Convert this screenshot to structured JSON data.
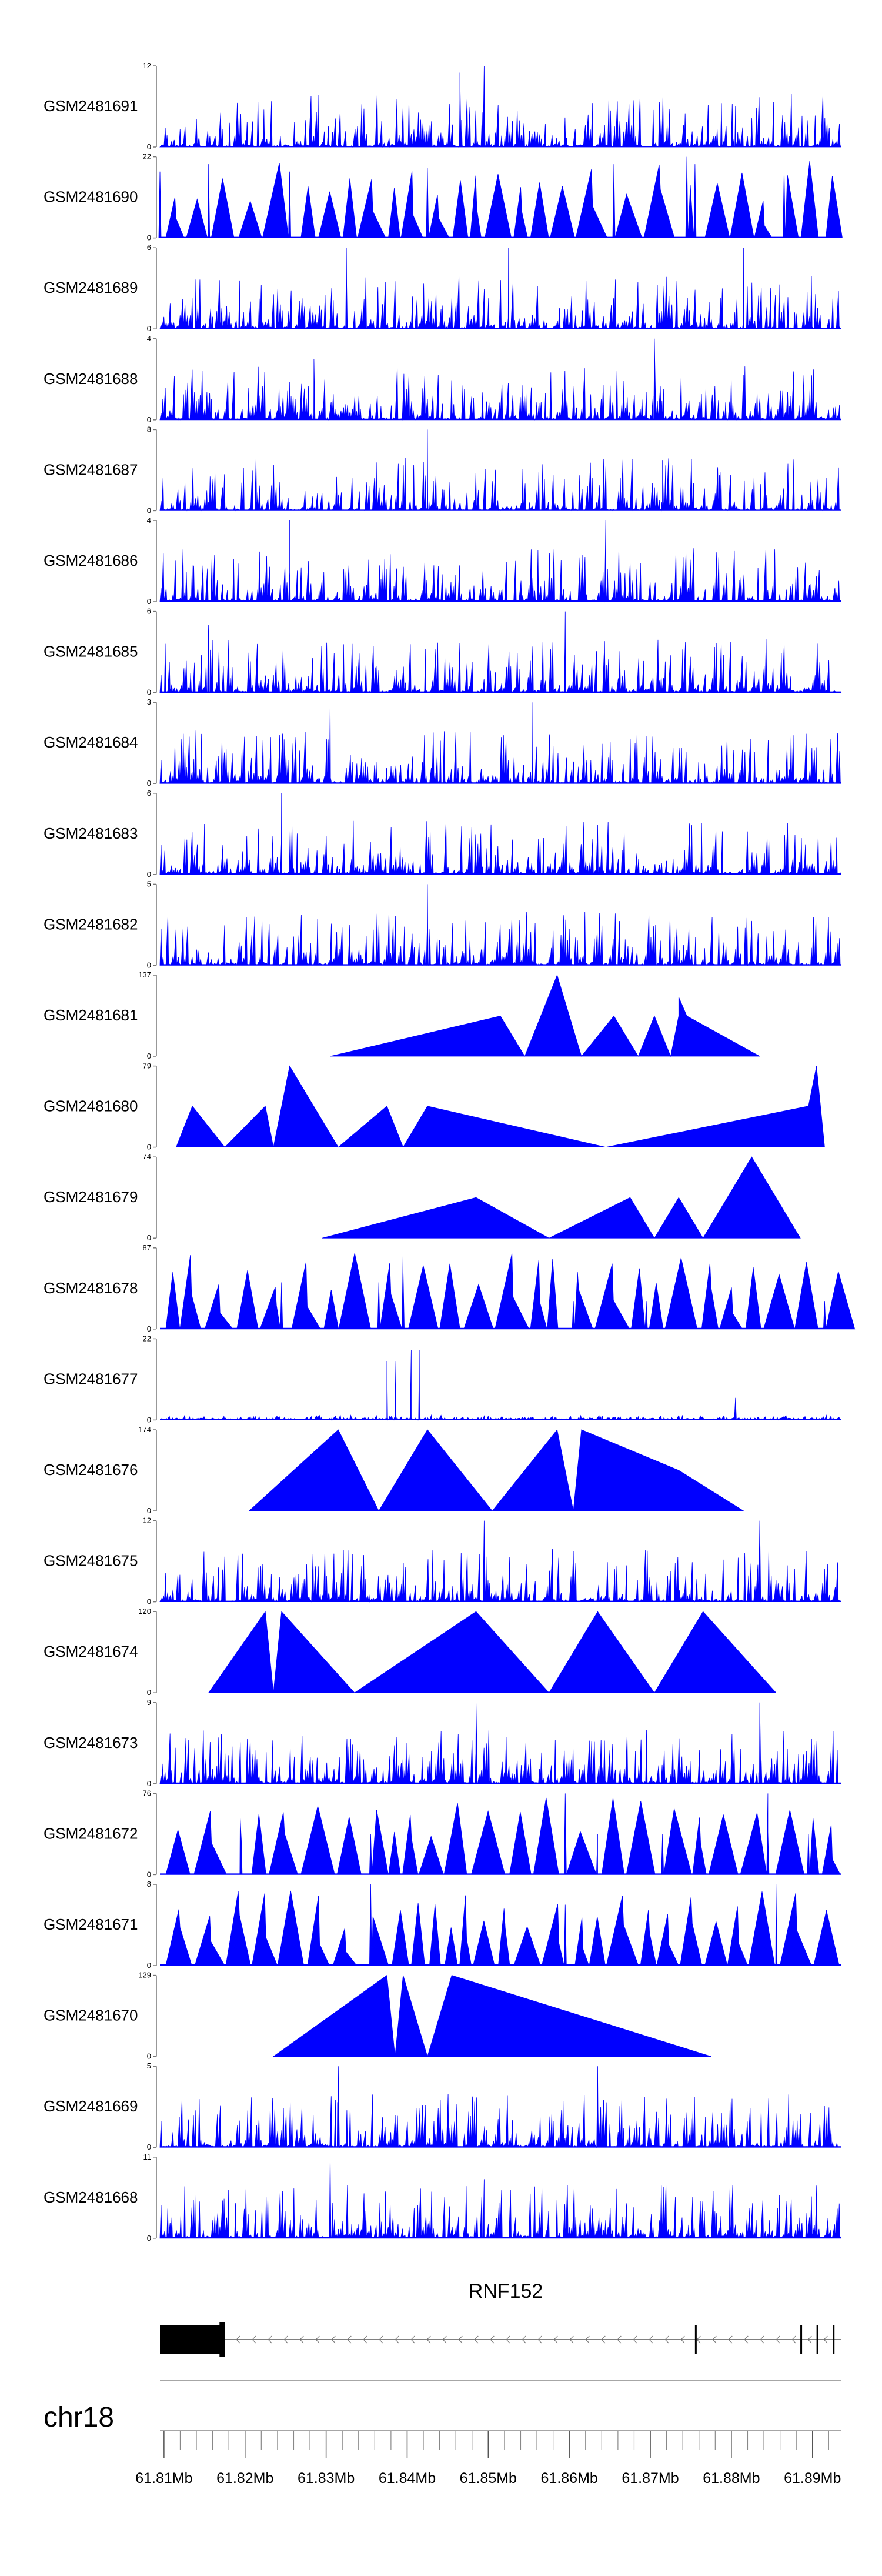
{
  "chart_data": {
    "type": "area",
    "title": "",
    "x_unit": "Mb",
    "x_range": [
      61.8095,
      61.8935
    ],
    "track_color": "#0000ff",
    "tracks": [
      {
        "name": "GSM2481691",
        "ymax": 12,
        "ymin": 0,
        "pattern": "spiky",
        "points": [
          [
            61.8465,
            7
          ],
          [
            61.8495,
            12
          ],
          [
            61.8465,
            11
          ],
          [
            61.8805,
            6
          ]
        ]
      },
      {
        "name": "GSM2481690",
        "ymax": 22,
        "ymin": 0,
        "pattern": "triangles",
        "points": [
          [
            61.8095,
            18
          ],
          [
            61.8155,
            20
          ],
          [
            61.8255,
            18
          ],
          [
            61.8425,
            19
          ],
          [
            61.8655,
            20
          ],
          [
            61.8745,
            22
          ],
          [
            61.8755,
            20
          ],
          [
            61.8865,
            18
          ],
          [
            61.8915,
            0
          ]
        ]
      },
      {
        "name": "GSM2481689",
        "ymax": 6,
        "ymin": 0,
        "pattern": "spiky",
        "points": [
          [
            61.8325,
            6
          ],
          [
            61.8525,
            6
          ],
          [
            61.8815,
            6
          ]
        ]
      },
      {
        "name": "GSM2481688",
        "ymax": 4,
        "ymin": 0,
        "pattern": "spiky",
        "points": [
          [
            61.8705,
            4
          ],
          [
            61.8285,
            3
          ]
        ]
      },
      {
        "name": "GSM2481687",
        "ymax": 8,
        "ymin": 0,
        "pattern": "spiky",
        "points": [
          [
            61.8425,
            8
          ],
          [
            61.8715,
            5
          ]
        ]
      },
      {
        "name": "GSM2481686",
        "ymax": 4,
        "ymin": 0,
        "pattern": "spiky",
        "points": [
          [
            61.8255,
            4
          ],
          [
            61.8645,
            4
          ]
        ]
      },
      {
        "name": "GSM2481685",
        "ymax": 6,
        "ymin": 0,
        "pattern": "spiky",
        "points": [
          [
            61.8595,
            6
          ],
          [
            61.8155,
            5
          ]
        ]
      },
      {
        "name": "GSM2481684",
        "ymax": 3,
        "ymin": 0,
        "pattern": "spiky",
        "points": [
          [
            61.8305,
            3
          ],
          [
            61.8555,
            3
          ]
        ]
      },
      {
        "name": "GSM2481683",
        "ymax": 6,
        "ymin": 0,
        "pattern": "spiky",
        "points": [
          [
            61.8245,
            6
          ]
        ]
      },
      {
        "name": "GSM2481682",
        "ymax": 5,
        "ymin": 0,
        "pattern": "spiky",
        "points": [
          [
            61.8425,
            5
          ]
        ]
      },
      {
        "name": "GSM2481681",
        "ymax": 137,
        "ymin": 0,
        "pattern": "polygon",
        "points": [
          [
            61.8305,
            0
          ],
          [
            61.8515,
            68
          ],
          [
            61.8545,
            0
          ],
          [
            61.8585,
            137
          ],
          [
            61.8615,
            0
          ],
          [
            61.8655,
            68
          ],
          [
            61.8685,
            0
          ],
          [
            61.8705,
            68
          ],
          [
            61.8725,
            0
          ],
          [
            61.8735,
            68
          ],
          [
            61.8735,
            100
          ],
          [
            61.8745,
            68
          ],
          [
            61.8835,
            0
          ]
        ]
      },
      {
        "name": "GSM2481680",
        "ymax": 79,
        "ymin": 0,
        "pattern": "polygon",
        "points": [
          [
            61.8115,
            0
          ],
          [
            61.8135,
            40
          ],
          [
            61.8175,
            0
          ],
          [
            61.8225,
            40
          ],
          [
            61.8235,
            0
          ],
          [
            61.8255,
            79
          ],
          [
            61.8315,
            0
          ],
          [
            61.8375,
            40
          ],
          [
            61.8395,
            0
          ],
          [
            61.8425,
            40
          ],
          [
            61.8645,
            0
          ],
          [
            61.8895,
            40
          ],
          [
            61.8905,
            79
          ],
          [
            61.8915,
            0
          ]
        ]
      },
      {
        "name": "GSM2481679",
        "ymax": 74,
        "ymin": 0,
        "pattern": "polygon",
        "points": [
          [
            61.8295,
            0
          ],
          [
            61.8485,
            37
          ],
          [
            61.8575,
            0
          ],
          [
            61.8675,
            37
          ],
          [
            61.8705,
            0
          ],
          [
            61.8735,
            37
          ],
          [
            61.8765,
            0
          ],
          [
            61.8825,
            74
          ],
          [
            61.8885,
            0
          ]
        ]
      },
      {
        "name": "GSM2481678",
        "ymax": 87,
        "ymin": 0,
        "pattern": "triangles",
        "points": [
          [
            61.8245,
            50
          ],
          [
            61.8365,
            50
          ],
          [
            61.8395,
            87
          ],
          [
            61.8395,
            60
          ],
          [
            61.8605,
            30
          ],
          [
            61.8695,
            30
          ],
          [
            61.8815,
            0
          ],
          [
            61.8915,
            30
          ]
        ]
      },
      {
        "name": "GSM2481677",
        "ymax": 22,
        "ymin": 0,
        "pattern": "spikes",
        "points": [
          [
            61.8375,
            16
          ],
          [
            61.8385,
            16
          ],
          [
            61.8405,
            19
          ],
          [
            61.8415,
            19
          ],
          [
            61.8805,
            6
          ]
        ]
      },
      {
        "name": "GSM2481676",
        "ymax": 174,
        "ymin": 0,
        "pattern": "polygon",
        "points": [
          [
            61.8205,
            0
          ],
          [
            61.8315,
            174
          ],
          [
            61.8365,
            0
          ],
          [
            61.8425,
            174
          ],
          [
            61.8505,
            0
          ],
          [
            61.8585,
            174
          ],
          [
            61.8605,
            0
          ],
          [
            61.8615,
            174
          ],
          [
            61.8735,
            87
          ],
          [
            61.8815,
            0
          ]
        ]
      },
      {
        "name": "GSM2481675",
        "ymax": 12,
        "ymin": 0,
        "pattern": "spiky",
        "points": [
          [
            61.8495,
            12
          ],
          [
            61.8835,
            12
          ]
        ]
      },
      {
        "name": "GSM2481674",
        "ymax": 120,
        "ymin": 0,
        "pattern": "polygon",
        "points": [
          [
            61.8155,
            0
          ],
          [
            61.8225,
            120
          ],
          [
            61.8235,
            0
          ],
          [
            61.8245,
            120
          ],
          [
            61.8335,
            0
          ],
          [
            61.8485,
            120
          ],
          [
            61.8575,
            0
          ],
          [
            61.8635,
            120
          ],
          [
            61.8705,
            0
          ],
          [
            61.8765,
            120
          ],
          [
            61.8855,
            0
          ]
        ]
      },
      {
        "name": "GSM2481673",
        "ymax": 9,
        "ymin": 0,
        "pattern": "spiky",
        "points": [
          [
            61.8485,
            9
          ],
          [
            61.8835,
            9
          ]
        ]
      },
      {
        "name": "GSM2481672",
        "ymax": 76,
        "ymin": 0,
        "pattern": "triangles",
        "points": [
          [
            61.8195,
            38
          ],
          [
            61.8355,
            38
          ],
          [
            61.8475,
            0
          ],
          [
            61.8595,
            76
          ],
          [
            61.8635,
            38
          ],
          [
            61.8715,
            38
          ],
          [
            61.8845,
            76
          ],
          [
            61.8845,
            40
          ],
          [
            61.8895,
            38
          ]
        ]
      },
      {
        "name": "GSM2481671",
        "ymax": 8,
        "ymin": 0,
        "pattern": "triangles",
        "points": [
          [
            61.8355,
            8
          ],
          [
            61.8595,
            6
          ],
          [
            61.8855,
            8
          ]
        ]
      },
      {
        "name": "GSM2481670",
        "ymax": 129,
        "ymin": 0,
        "pattern": "polygon",
        "points": [
          [
            61.8235,
            0
          ],
          [
            61.8375,
            129
          ],
          [
            61.8385,
            0
          ],
          [
            61.8395,
            129
          ],
          [
            61.8425,
            0
          ],
          [
            61.8455,
            129
          ],
          [
            61.8775,
            0
          ]
        ]
      },
      {
        "name": "GSM2481669",
        "ymax": 5,
        "ymin": 0,
        "pattern": "spiky",
        "points": [
          [
            61.8315,
            5
          ],
          [
            61.8635,
            5
          ]
        ]
      },
      {
        "name": "GSM2481668",
        "ymax": 11,
        "ymin": 0,
        "pattern": "spiky",
        "points": [
          [
            61.8305,
            11
          ],
          [
            61.8495,
            8
          ]
        ]
      }
    ],
    "gene": {
      "name": "RNF152",
      "strand": "-",
      "start": 61.8095,
      "end": 61.8935,
      "exons": [
        [
          61.8095,
          61.8175
        ],
        [
          61.8755,
          61.8758
        ],
        [
          61.8885,
          61.8888
        ],
        [
          61.8905,
          61.8908
        ],
        [
          61.8925,
          61.8935
        ]
      ],
      "cds_end": 61.8175
    },
    "chromosome": "chr18",
    "x_ticks": [
      {
        "value": 61.81,
        "label": "61.81Mb"
      },
      {
        "value": 61.82,
        "label": "61.82Mb"
      },
      {
        "value": 61.83,
        "label": "61.83Mb"
      },
      {
        "value": 61.84,
        "label": "61.84Mb"
      },
      {
        "value": 61.85,
        "label": "61.85Mb"
      },
      {
        "value": 61.86,
        "label": "61.86Mb"
      },
      {
        "value": 61.87,
        "label": "61.87Mb"
      },
      {
        "value": 61.88,
        "label": "61.88Mb"
      },
      {
        "value": 61.89,
        "label": "61.89Mb"
      }
    ],
    "minor_tick_step": 0.002
  }
}
